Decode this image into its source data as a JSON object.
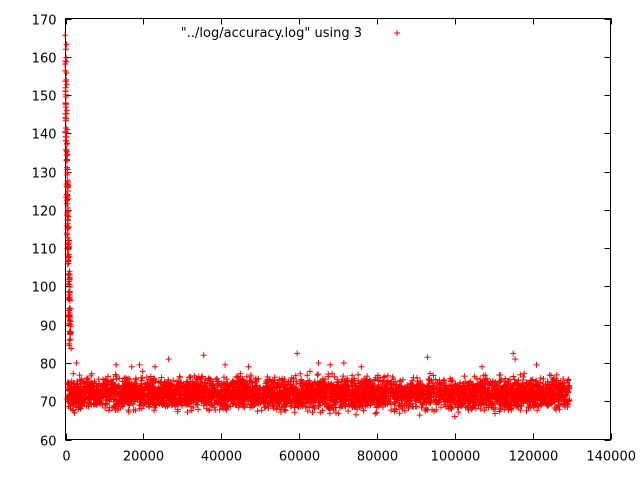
{
  "chart_data": {
    "type": "scatter",
    "title": "",
    "xlabel": "",
    "ylabel": "",
    "xlim": [
      0,
      140000
    ],
    "ylim": [
      60,
      170
    ],
    "x_ticks": [
      0,
      20000,
      40000,
      60000,
      80000,
      100000,
      120000,
      140000
    ],
    "x_tick_labels": [
      "0",
      "20000",
      "40000",
      "60000",
      "80000",
      "100000",
      "120000",
      "140000"
    ],
    "y_ticks": [
      60,
      70,
      80,
      90,
      100,
      110,
      120,
      130,
      140,
      150,
      160,
      170
    ],
    "y_tick_labels": [
      "60",
      "70",
      "80",
      "90",
      "100",
      "110",
      "120",
      "130",
      "140",
      "150",
      "160",
      "170"
    ],
    "grid": false,
    "legend_position": "top",
    "marker": "plus",
    "series": [
      {
        "name": "\"../log/accuracy.log\" using 3",
        "color": "#ff0000",
        "x_range": [
          0,
          129500
        ],
        "initial_spike": {
          "x_end": 2000,
          "y_start": 165,
          "y_end": 85
        },
        "band": {
          "x_start": 500,
          "x_end": 129500,
          "y_center": 72,
          "y_low": 66,
          "y_high": 78
        },
        "outliers": [
          {
            "x": 2800,
            "y": 80
          },
          {
            "x": 13000,
            "y": 79.5
          },
          {
            "x": 17000,
            "y": 79
          },
          {
            "x": 19000,
            "y": 79.5
          },
          {
            "x": 23000,
            "y": 79
          },
          {
            "x": 26500,
            "y": 81
          },
          {
            "x": 35500,
            "y": 82
          },
          {
            "x": 41000,
            "y": 79.5
          },
          {
            "x": 47000,
            "y": 79
          },
          {
            "x": 59500,
            "y": 82.5
          },
          {
            "x": 65000,
            "y": 80
          },
          {
            "x": 68000,
            "y": 79.5
          },
          {
            "x": 71500,
            "y": 80
          },
          {
            "x": 76000,
            "y": 79
          },
          {
            "x": 93000,
            "y": 81.5
          },
          {
            "x": 100000,
            "y": 66
          },
          {
            "x": 107000,
            "y": 79
          },
          {
            "x": 115000,
            "y": 82.5
          },
          {
            "x": 115500,
            "y": 81
          },
          {
            "x": 121000,
            "y": 79.5
          }
        ]
      }
    ]
  }
}
